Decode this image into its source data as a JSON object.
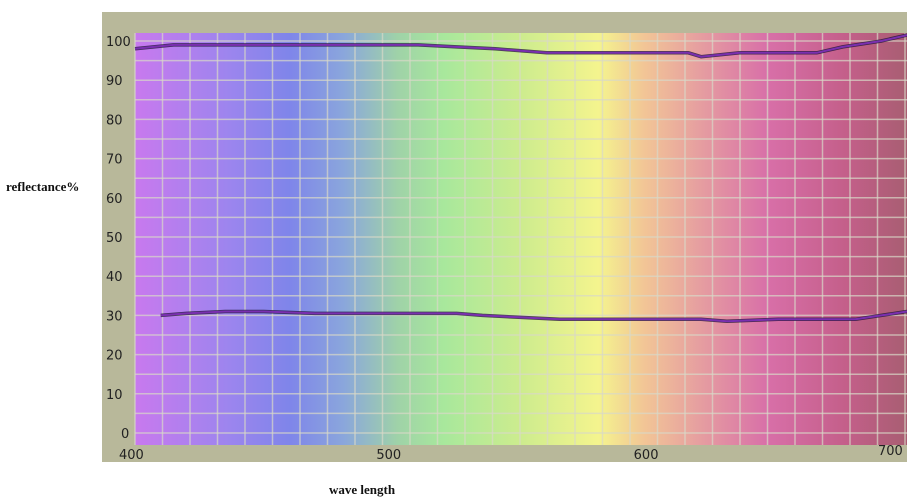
{
  "chart_data": {
    "type": "line",
    "xlabel": "wave length",
    "ylabel": "reflectance%",
    "xlim": [
      400,
      700
    ],
    "ylim": [
      0,
      100
    ],
    "xticks": [
      400,
      500,
      600,
      700
    ],
    "yticks": [
      0,
      10,
      20,
      30,
      40,
      50,
      60,
      70,
      80,
      90,
      100
    ],
    "grid": true,
    "background": "visible spectrum gradient (violet to red)",
    "series": [
      {
        "x": [
          400,
          415,
          430,
          450,
          470,
          490,
          510,
          525,
          540,
          550,
          560,
          580,
          600,
          615,
          620,
          635,
          650,
          665,
          675,
          690,
          700
        ],
        "values": [
          98,
          99,
          99,
          99,
          99,
          99,
          99,
          98.5,
          98,
          97.5,
          97,
          97,
          97,
          97,
          96,
          97,
          97,
          97,
          98.5,
          100,
          101.5
        ]
      },
      {
        "x": [
          410,
          420,
          435,
          450,
          470,
          490,
          510,
          525,
          535,
          550,
          565,
          580,
          600,
          620,
          630,
          650,
          665,
          680,
          690,
          700
        ],
        "values": [
          30,
          30.5,
          31,
          31,
          30.5,
          30.5,
          30.5,
          30.5,
          30,
          29.5,
          29,
          29,
          29,
          29,
          28.5,
          29,
          29,
          29,
          30,
          31
        ]
      }
    ],
    "colors": {
      "line": "#7a2fb0",
      "shadow": "#1a1030",
      "grid": "#d9d9c8",
      "frame": "#b8b89a"
    }
  }
}
